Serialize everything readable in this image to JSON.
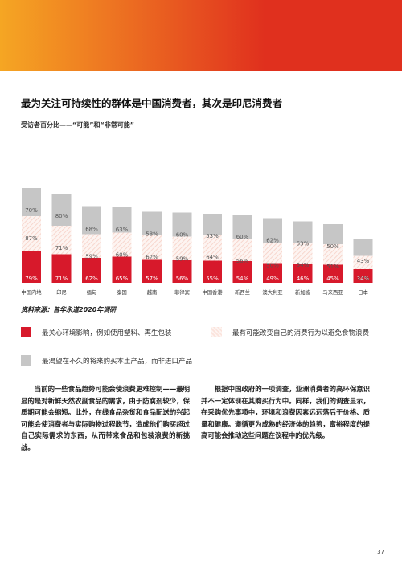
{
  "page": {
    "title": "最为关注可持续性的群体是中国消费者，其次是印尼消费者",
    "subtitle": "受访者百分比——“可能”和“非常可能”",
    "source": "资料来源：普华永道2020年调研",
    "page_number": "37"
  },
  "legend": [
    {
      "label": "最关心环境影响，例如使用塑料、再生包装",
      "color": "#d7192b"
    },
    {
      "label": "最有可能改变自己的消费行为以避免食物浪费",
      "color": "#fbe3dc"
    },
    {
      "label": "最渴望在不久的将来购买本土产品，而非进口产品",
      "color": "#c6c6c6"
    }
  ],
  "body": {
    "left": "当前的一些食品趋势可能会使浪费更难控制——最明显的是对新鲜天然农副食品的需求，由于防腐剂较少，保质期可能会缩短。此外，在线食品杂货和食品配送的兴起可能会使消费者与实际购物过程脱节，造成他们购买超过自己实际需求的东西，从而带来食品和包装浪费的新挑战。",
    "right": "根据中国政府的一项调查，亚洲消费者的高环保意识并不一定体现在其购买行为中。同样，我们的调查显示，在采购优先事项中，环境和浪费因素远远落后于价格、质量和健康。遵循更为成熟的经济体的趋势，富裕程度的提高可能会推动这些问题在议程中的优先级。"
  },
  "chart_data": {
    "type": "bar",
    "stacked": true,
    "categories": [
      "中国内地",
      "印尼",
      "缅甸",
      "泰国",
      "越南",
      "菲律宾",
      "中国香港",
      "新西兰",
      "澳大利亚",
      "新加坡",
      "马来西亚",
      "日本"
    ],
    "series": [
      {
        "name": "最关心环境影响，例如使用塑料、再生包装",
        "values": [
          79,
          71,
          62,
          65,
          57,
          56,
          55,
          54,
          49,
          46,
          45,
          34
        ],
        "color": "#d7192b"
      },
      {
        "name": "最有可能改变自己的消费行为以避免食物浪费",
        "values": [
          87,
          71,
          59,
          60,
          62,
          59,
          64,
          56,
          50,
          54,
          51,
          33
        ],
        "color": "#fbe3dc"
      },
      {
        "name": "最渴望在不久的将来购买本土产品，而非进口产品",
        "values": [
          70,
          80,
          68,
          63,
          58,
          60,
          53,
          60,
          62,
          53,
          50,
          43
        ],
        "color": "#c6c6c6"
      }
    ],
    "value_format": "{v}%",
    "grid": false,
    "legend_position": "bottom"
  }
}
